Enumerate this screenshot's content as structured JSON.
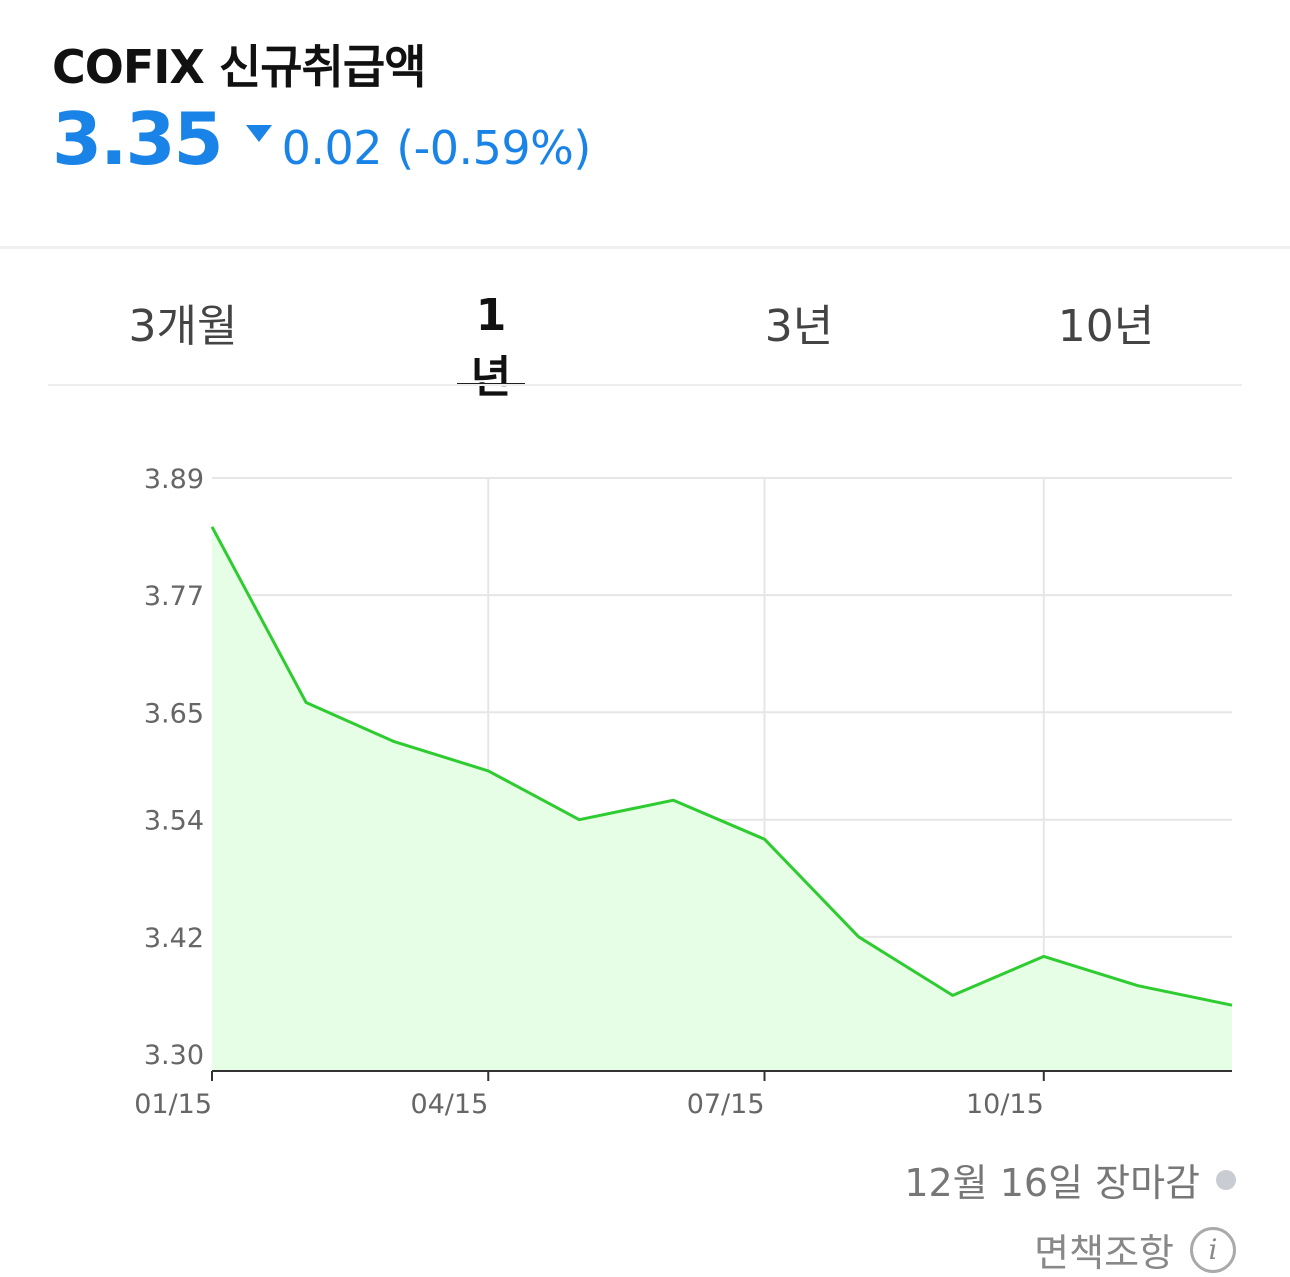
{
  "header": {
    "title": "COFIX 신규취급액",
    "price": "3.35",
    "change": "0.02 (-0.59%)",
    "direction_icon": "triangle-down-icon",
    "accent_color": "#1a83e8"
  },
  "tabs": [
    {
      "label": "3개월",
      "active": false
    },
    {
      "label": "1년",
      "active": true
    },
    {
      "label": "3년",
      "active": false
    },
    {
      "label": "10년",
      "active": false
    }
  ],
  "chart_data": {
    "type": "area",
    "title": "",
    "xlabel": "",
    "ylabel": "",
    "x_ticks": [
      "01/15",
      "04/15",
      "07/15",
      "10/15"
    ],
    "y_ticks": [
      "3.30",
      "3.42",
      "3.54",
      "3.65",
      "3.77",
      "3.89"
    ],
    "ylim": [
      3.3,
      3.89
    ],
    "grid": true,
    "line_color": "#2ecc30",
    "fill_color": "#e6fde6",
    "series": [
      {
        "x": [
          "2024-01-15",
          "2024-02-15",
          "2024-03-15",
          "2024-04-15",
          "2024-05-15",
          "2024-06-15",
          "2024-07-15",
          "2024-08-15",
          "2024-09-15",
          "2024-10-15",
          "2024-11-15",
          "2024-12-16"
        ],
        "values": [
          3.84,
          3.66,
          3.62,
          3.59,
          3.54,
          3.56,
          3.52,
          3.42,
          3.36,
          3.4,
          3.37,
          3.35
        ]
      }
    ]
  },
  "status": {
    "text": "12월 16일 장마감",
    "dot_color": "#c9ccd3"
  },
  "footer": {
    "disclaimer": "면책조항",
    "info_icon": "info-icon",
    "info_glyph": "i"
  }
}
